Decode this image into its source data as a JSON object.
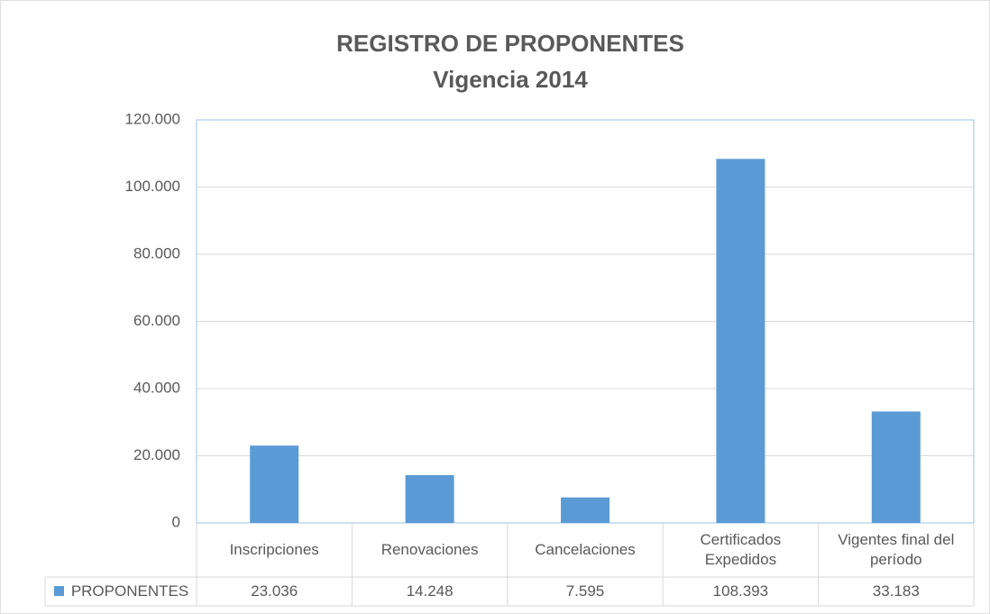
{
  "chart_data": {
    "type": "bar",
    "title": "REGISTRO DE PROPONENTES",
    "subtitle": "Vigencia 2014",
    "categories": [
      "Inscripciones",
      "Renovaciones",
      "Cancelaciones",
      "Certificados Expedidos",
      "Vigentes final del período"
    ],
    "series": [
      {
        "name": "PROPONENTES",
        "color": "#5b9bd5",
        "values": [
          23036,
          14248,
          7595,
          108393,
          33183
        ],
        "value_labels": [
          "23.036",
          "14.248",
          "7.595",
          "108.393",
          "33.183"
        ]
      }
    ],
    "ylim": [
      0,
      120000
    ],
    "yticks": [
      0,
      {
        "value": 20000,
        "label": "20.000"
      },
      {
        "value": 40000,
        "label": "40.000"
      },
      {
        "value": 60000,
        "label": "60.000"
      },
      {
        "value": 80000,
        "label": "80.000"
      },
      {
        "value": 100000,
        "label": "100.000"
      },
      {
        "value": 120000,
        "label": "120.000"
      }
    ],
    "grid": true
  }
}
